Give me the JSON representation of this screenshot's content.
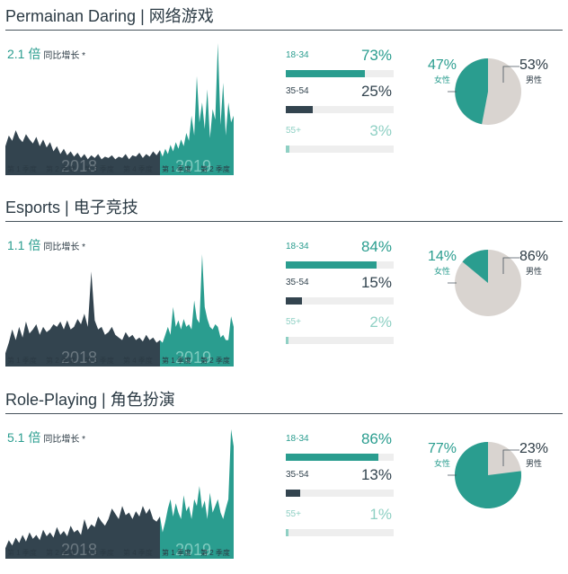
{
  "colors": {
    "dark": "#33444f",
    "teal": "#2a9d8f",
    "light_teal": "#8fd0c4",
    "grey": "#d9d4d0",
    "track": "#eeeeee"
  },
  "sections": [
    {
      "title": "Permainan Daring | 网络游戏",
      "growth_multiplier": "2.1 倍",
      "growth_label": "同比增长 *",
      "year_labels": [
        "2018",
        "2019"
      ],
      "quarter_labels": [
        "第 1 季度",
        "第 2 季度",
        "第 3 季度",
        "第 4 季度",
        "第 1 季度",
        "第 2 季度"
      ],
      "age_groups": [
        {
          "label": "18-34",
          "percent": "73%",
          "value": 73,
          "style": "teal"
        },
        {
          "label": "35-54",
          "percent": "25%",
          "value": 25,
          "style": "dark"
        },
        {
          "label": "55+",
          "percent": "3%",
          "value": 3,
          "style": "light"
        }
      ],
      "gender": {
        "female_percent": "47%",
        "female_label": "女性",
        "male_percent": "53%",
        "male_label": "男性",
        "female_value": 47
      }
    },
    {
      "title": "Esports | 电子竞技",
      "growth_multiplier": "1.1 倍",
      "growth_label": "同比增长 *",
      "year_labels": [
        "2018",
        "2019"
      ],
      "quarter_labels": [
        "第 1 季度",
        "第 2 季度",
        "第 3 季度",
        "第 4 季度",
        "第 1 季度",
        "第 2 季度"
      ],
      "age_groups": [
        {
          "label": "18-34",
          "percent": "84%",
          "value": 84,
          "style": "teal"
        },
        {
          "label": "35-54",
          "percent": "15%",
          "value": 15,
          "style": "dark"
        },
        {
          "label": "55+",
          "percent": "2%",
          "value": 2,
          "style": "light"
        }
      ],
      "gender": {
        "female_percent": "14%",
        "female_label": "女性",
        "male_percent": "86%",
        "male_label": "男性",
        "female_value": 14
      }
    },
    {
      "title": "Role-Playing | 角色扮演",
      "growth_multiplier": "5.1 倍",
      "growth_label": "同比增长 *",
      "year_labels": [
        "2018",
        "2019"
      ],
      "quarter_labels": [
        "第 1 季度",
        "第 2 季度",
        "第 3 季度",
        "第 4 季度",
        "第 1 季度",
        "第 2 季度"
      ],
      "age_groups": [
        {
          "label": "18-34",
          "percent": "86%",
          "value": 86,
          "style": "teal"
        },
        {
          "label": "35-54",
          "percent": "13%",
          "value": 13,
          "style": "dark"
        },
        {
          "label": "55+",
          "percent": "1%",
          "value": 1,
          "style": "light"
        }
      ],
      "gender": {
        "female_percent": "77%",
        "female_label": "女性",
        "male_percent": "23%",
        "male_label": "男性",
        "female_value": 77
      }
    }
  ],
  "chart_data": [
    {
      "type": "area",
      "title": "Permainan Daring | 网络游戏",
      "series": [
        {
          "name": "2018",
          "values": [
            22,
            30,
            26,
            34,
            28,
            25,
            31,
            27,
            24,
            29,
            22,
            27,
            21,
            25,
            18,
            22,
            16,
            20,
            15,
            18,
            14,
            17,
            13,
            16,
            12,
            15,
            13,
            16,
            12,
            14,
            13,
            15,
            12,
            14,
            13,
            16,
            12,
            15,
            14,
            17,
            13,
            16,
            14,
            18,
            15,
            19
          ]
        },
        {
          "name": "2019",
          "values": [
            14,
            20,
            16,
            23,
            18,
            25,
            20,
            27,
            22,
            32,
            26,
            45,
            30,
            75,
            40,
            55,
            35,
            65,
            28,
            50,
            42,
            100,
            38,
            70,
            30,
            55,
            40,
            45
          ]
        }
      ],
      "ylim": [
        0,
        100
      ]
    },
    {
      "type": "area",
      "title": "Esports | 电子竞技",
      "series": [
        {
          "name": "2018",
          "values": [
            10,
            18,
            28,
            20,
            30,
            22,
            34,
            25,
            28,
            32,
            24,
            30,
            26,
            28,
            32,
            30,
            34,
            28,
            35,
            28,
            30,
            36,
            32,
            40,
            30,
            72,
            35,
            28,
            30,
            24,
            26,
            30,
            24,
            22,
            20,
            26,
            22,
            24,
            20,
            22,
            19,
            24,
            20,
            22,
            18,
            20
          ]
        },
        {
          "name": "2019",
          "values": [
            18,
            24,
            30,
            24,
            45,
            30,
            35,
            28,
            36,
            30,
            32,
            28,
            50,
            36,
            33,
            85,
            45,
            36,
            30,
            28,
            32,
            30,
            22,
            24,
            20,
            20,
            38,
            30
          ]
        }
      ],
      "ylim": [
        0,
        100
      ]
    },
    {
      "type": "area",
      "title": "Role-Playing | 角色扮演",
      "series": [
        {
          "name": "2018",
          "values": [
            8,
            14,
            10,
            16,
            12,
            18,
            13,
            20,
            15,
            18,
            14,
            22,
            17,
            20,
            16,
            24,
            18,
            21,
            17,
            25,
            20,
            22,
            18,
            30,
            22,
            26,
            24,
            32,
            28,
            25,
            30,
            38,
            34,
            30,
            40,
            33,
            35,
            30,
            36,
            32,
            40,
            34,
            38,
            30,
            28,
            32
          ]
        },
        {
          "name": "2019",
          "values": [
            20,
            28,
            38,
            45,
            32,
            42,
            35,
            30,
            48,
            36,
            40,
            30,
            45,
            40,
            55,
            38,
            44,
            30,
            50,
            35,
            40,
            45,
            35,
            30,
            38,
            45,
            98,
            85
          ]
        }
      ],
      "ylim": [
        0,
        100
      ]
    }
  ]
}
